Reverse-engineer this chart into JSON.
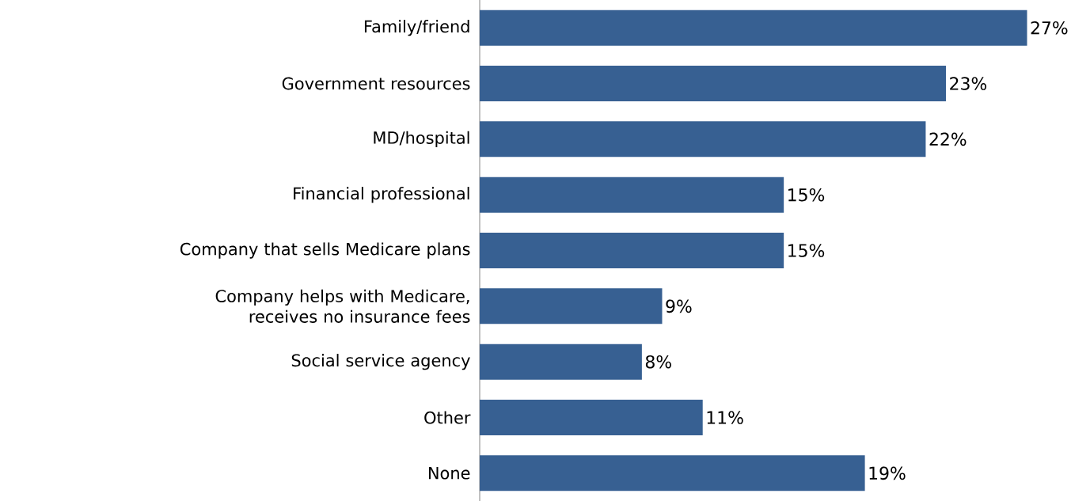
{
  "chart_data": {
    "type": "bar",
    "orientation": "horizontal",
    "categories": [
      "Family/friend",
      "Government resources",
      "MD/hospital",
      "Financial professional",
      "Company that sells Medicare plans",
      "Company helps with Medicare, receives no insurance fees",
      "Social service agency",
      "Other",
      "None"
    ],
    "values": [
      27,
      23,
      22,
      15,
      15,
      9,
      8,
      11,
      19
    ],
    "value_labels": [
      "27%",
      "23%",
      "22%",
      "15%",
      "15%",
      "9%",
      "8%",
      "11%",
      "19%"
    ],
    "color": "#376092"
  }
}
